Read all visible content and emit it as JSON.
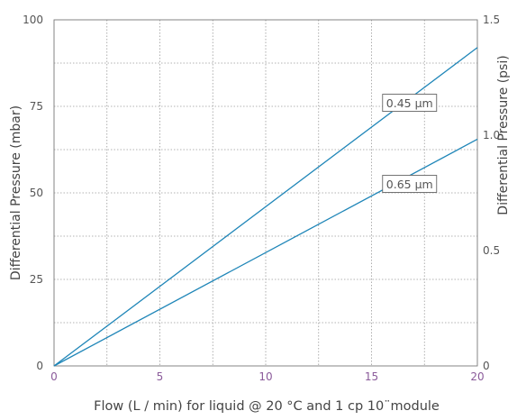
{
  "chart_data": {
    "type": "line",
    "title": "",
    "xlabel": "Flow (L / min) for liquid @ 20 °C and 1 cp 10¨module",
    "ylabel": "Differential Pressure (mbar)",
    "y2label": "Differential Pressure (psi)",
    "xlim": [
      0,
      20
    ],
    "ylim": [
      0,
      100
    ],
    "y2lim": [
      0,
      1.5
    ],
    "x_ticks": [
      0,
      5,
      10,
      15,
      20
    ],
    "x_tick_labels": [
      "0",
      "5",
      "10",
      "15",
      "20"
    ],
    "y_ticks": [
      0,
      25,
      50,
      75,
      100
    ],
    "y_tick_labels": [
      "0",
      "25",
      "50",
      "75",
      "100"
    ],
    "y2_ticks": [
      0,
      0.5,
      1.0,
      1.5
    ],
    "y2_tick_labels": [
      "0",
      "0.5",
      "1.0",
      "1.5"
    ],
    "grid": true,
    "series": [
      {
        "name": "0.45 µm",
        "x": [
          0,
          20
        ],
        "y": [
          0,
          92
        ]
      },
      {
        "name": "0.65 µm",
        "x": [
          0,
          20
        ],
        "y": [
          0,
          65.5
        ]
      }
    ],
    "annotations": [
      {
        "text": "0.45 µm",
        "series": 0
      },
      {
        "text": "0.65 µm",
        "series": 1
      }
    ],
    "colors": {
      "line": "#1f86b8",
      "x_tick_text": "#8a5a9a"
    }
  }
}
